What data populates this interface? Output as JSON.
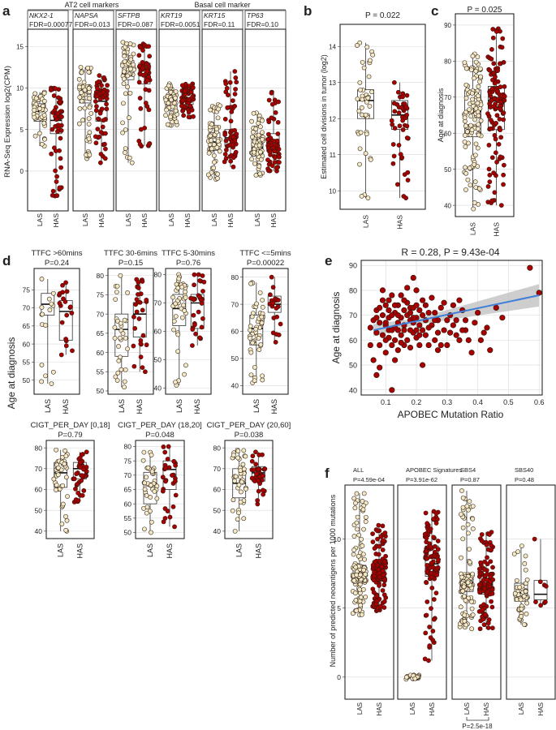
{
  "figure": {
    "colors": {
      "las": "#f3e9c6",
      "has": "#a80000",
      "point_edge": "#2b1a10",
      "box": "#333333",
      "grid": "#d9d9d9",
      "fit_line": "#3f7fd9",
      "ci": "#bdbdbd"
    },
    "panel_labels": {
      "a": "a",
      "b": "b",
      "c": "c",
      "d": "d",
      "e": "e",
      "f": "f"
    }
  },
  "chart_data": [
    {
      "id": "a",
      "type": "box-strip",
      "group_labels": [
        "AT2 cell markers",
        "Basal cell marker"
      ],
      "ylabel": "RNA-Seq Expression log2(CPM)",
      "ylim": [
        -4.5,
        16
      ],
      "yticks": [
        0,
        5,
        10,
        15
      ],
      "xcats": [
        "LAS",
        "HAS"
      ],
      "facets": [
        {
          "gene": "NKX2-1",
          "stat": "FDR=0.00077",
          "las": {
            "q": [
              3,
              6.0,
              7.2,
              8.1,
              9.5
            ],
            "n": 50
          },
          "has": {
            "q": [
              -3,
              4.5,
              6.1,
              7.1,
              10.0
            ],
            "n": 55
          }
        },
        {
          "gene": "NAPSA",
          "stat": "FDR=0.013",
          "las": {
            "q": [
              1.5,
              8.2,
              9.3,
              10.3,
              12.5
            ],
            "n": 60
          },
          "has": {
            "q": [
              1,
              6.0,
              8.4,
              9.8,
              11.5
            ],
            "n": 60
          }
        },
        {
          "gene": "SFTPB",
          "stat": "FDR=0.087",
          "las": {
            "q": [
              1,
              11.0,
              12.2,
              13.3,
              15.5
            ],
            "n": 60
          },
          "has": {
            "q": [
              3,
              10.5,
              11.7,
              13.0,
              15.3
            ],
            "n": 60
          }
        },
        {
          "gene": "KRT19",
          "stat": "FDR=0.0051",
          "las": {
            "q": [
              5.5,
              7.3,
              8.2,
              9.0,
              10.5
            ],
            "n": 60
          },
          "has": {
            "q": [
              6.5,
              8.0,
              8.8,
              9.6,
              10.5
            ],
            "n": 60
          }
        },
        {
          "gene": "KRT15",
          "stat": "FDR=0.11",
          "las": {
            "q": [
              -1,
              2.5,
              3.5,
              4.6,
              8.0
            ],
            "n": 60
          },
          "has": {
            "q": [
              0.5,
              3.0,
              4.0,
              5.0,
              12.0
            ],
            "n": 60
          }
        },
        {
          "gene": "TP63",
          "stat": "FDR=0.10",
          "las": {
            "q": [
              -0.5,
              1.8,
              2.8,
              3.8,
              7.0
            ],
            "n": 60
          },
          "has": {
            "q": [
              0,
              2.2,
              3.2,
              4.5,
              9.5
            ],
            "n": 60
          }
        }
      ]
    },
    {
      "id": "b",
      "type": "box-strip",
      "title": "P = 0.022",
      "ylabel": "Estimated cell divisions in tumor (log2)",
      "ylim": [
        9.6,
        14.5
      ],
      "yticks": [
        10,
        11,
        12,
        13,
        14
      ],
      "xcats": [
        "LAS",
        "HAS"
      ],
      "las": {
        "q": [
          9.8,
          12.0,
          12.5,
          12.8,
          14.1
        ],
        "n": 45
      },
      "has": {
        "q": [
          9.8,
          11.7,
          12.1,
          12.5,
          13.0
        ],
        "n": 48
      }
    },
    {
      "id": "c",
      "type": "box-strip",
      "title": "P = 0.025",
      "ylabel": "Age at diagnosis",
      "ylim": [
        38,
        92
      ],
      "yticks": [
        40,
        50,
        60,
        70,
        80,
        90
      ],
      "xcats": [
        "LAS",
        "HAS"
      ],
      "las": {
        "q": [
          39,
          59,
          66,
          72,
          82
        ],
        "n": 120
      },
      "has": {
        "q": [
          40,
          61,
          69,
          73,
          89
        ],
        "n": 120
      }
    },
    {
      "id": "d",
      "type": "box-strip",
      "ylabel": "Age at diagnosis",
      "xcats": [
        "LAS",
        "HAS"
      ],
      "facets": [
        {
          "title": "TTFC >60mins",
          "stat": "P=0.24",
          "ylim": [
            47,
            80
          ],
          "yticks": [
            50,
            55,
            60,
            65,
            70,
            75
          ],
          "las": {
            "q": [
              49,
              68,
              71,
              74,
              78
            ],
            "n": 16
          },
          "has": {
            "q": [
              57,
              61,
              69,
              72,
              77
            ],
            "n": 20
          }
        },
        {
          "title": "TTFC 30-6mins",
          "stat": "P=0.15",
          "ylim": [
            50,
            81
          ],
          "yticks": [
            50,
            55,
            60,
            65,
            70,
            75,
            80
          ],
          "las": {
            "q": [
              51,
              59,
              66,
              70,
              80
            ],
            "n": 30
          },
          "has": {
            "q": [
              55,
              64,
              70,
              73,
              79
            ],
            "n": 30
          }
        },
        {
          "title": "TTFC 5-30mins",
          "stat": "P=0.76",
          "ylim": [
            39,
            81
          ],
          "yticks": [
            40,
            50,
            60,
            70,
            80
          ],
          "las": {
            "q": [
              41,
              62,
              68,
              73,
              80
            ],
            "n": 40
          },
          "has": {
            "q": [
              55,
              61,
              70,
              73,
              80
            ],
            "n": 30
          }
        },
        {
          "title": "TTFC <=5mins",
          "stat": "P=0.00022",
          "ylim": [
            38,
            82
          ],
          "yticks": [
            40,
            50,
            60,
            70,
            80
          ],
          "las": {
            "q": [
              41,
              55,
              61,
              66,
              78
            ],
            "n": 50
          },
          "has": {
            "q": [
              56,
              67,
              70,
              73,
              80
            ],
            "n": 20
          }
        },
        {
          "title": "CIGT_PER_DAY [0,18]",
          "stat": "P=0.79",
          "ylim": [
            38,
            82
          ],
          "yticks": [
            40,
            50,
            60,
            70,
            80
          ],
          "las": {
            "q": [
              40,
              61,
              68,
              73,
              79
            ],
            "n": 40
          },
          "has": {
            "q": [
              54,
              65,
              70,
              73,
              78
            ],
            "n": 40
          }
        },
        {
          "title": "CIGT_PER_DAY (18,20]",
          "stat": "P=0.048",
          "ylim": [
            49,
            81
          ],
          "yticks": [
            50,
            55,
            60,
            65,
            70,
            75,
            80
          ],
          "las": {
            "q": [
              50,
              60,
              67,
              71,
              78
            ],
            "n": 40
          },
          "has": {
            "q": [
              52,
              65,
              72,
              75,
              80
            ],
            "n": 30
          }
        },
        {
          "title": "CIGT_PER_DAY (20,60]",
          "stat": "P=0.038",
          "ylim": [
            38,
            82
          ],
          "yticks": [
            40,
            50,
            60,
            70,
            80
          ],
          "las": {
            "q": [
              40,
              56,
              63,
              70,
              79
            ],
            "n": 45
          },
          "has": {
            "q": [
              53,
              64,
              68,
              71,
              78
            ],
            "n": 35
          }
        }
      ]
    },
    {
      "id": "e",
      "type": "scatter",
      "title": "R = 0.28, P = 9.43e-04",
      "xlabel": "APOBEC Mutation Ratio",
      "ylabel": "Age at diagnosis",
      "xlim": [
        0.02,
        0.61
      ],
      "ylim": [
        38,
        92
      ],
      "xticks": [
        0.1,
        0.2,
        0.3,
        0.4,
        0.5,
        0.6
      ],
      "yticks": [
        40,
        50,
        60,
        70,
        80,
        90
      ],
      "fit": {
        "x": [
          0.06,
          0.6
        ],
        "y": [
          64,
          78
        ]
      },
      "points": [
        [
          0.57,
          89
        ],
        [
          0.6,
          79
        ],
        [
          0.43,
          65
        ],
        [
          0.41,
          60
        ],
        [
          0.44,
          56
        ],
        [
          0.33,
          62
        ],
        [
          0.31,
          70
        ],
        [
          0.36,
          68
        ],
        [
          0.29,
          75
        ],
        [
          0.27,
          63
        ],
        [
          0.3,
          68
        ],
        [
          0.26,
          71
        ],
        [
          0.23,
          62
        ],
        [
          0.21,
          58
        ],
        [
          0.19,
          85
        ],
        [
          0.06,
          52
        ],
        [
          0.07,
          46
        ],
        [
          0.12,
          40
        ],
        [
          0.08,
          49
        ],
        [
          0.1,
          55
        ],
        [
          0.13,
          52
        ],
        [
          0.15,
          78
        ],
        [
          0.18,
          73
        ],
        [
          0.22,
          76
        ],
        [
          0.24,
          58
        ],
        [
          0.35,
          72
        ],
        [
          0.38,
          55
        ],
        [
          0.16,
          66
        ],
        [
          0.2,
          69
        ],
        [
          0.25,
          66
        ],
        [
          0.28,
          73
        ],
        [
          0.32,
          74
        ],
        [
          0.34,
          60
        ],
        [
          0.17,
          60
        ],
        [
          0.11,
          61
        ],
        [
          0.14,
          64
        ],
        [
          0.09,
          70
        ],
        [
          0.1,
          74
        ],
        [
          0.12,
          78
        ],
        [
          0.2,
          80
        ],
        [
          0.22,
          50
        ],
        [
          0.28,
          58
        ],
        [
          0.4,
          71
        ],
        [
          0.39,
          67
        ],
        [
          0.46,
          73
        ],
        [
          0.05,
          58
        ],
        [
          0.07,
          63
        ],
        [
          0.08,
          67
        ],
        [
          0.11,
          69
        ],
        [
          0.13,
          71
        ],
        [
          0.14,
          67
        ],
        [
          0.16,
          72
        ],
        [
          0.17,
          75
        ],
        [
          0.18,
          68
        ],
        [
          0.19,
          63
        ],
        [
          0.21,
          72
        ],
        [
          0.23,
          68
        ],
        [
          0.24,
          71
        ],
        [
          0.26,
          60
        ],
        [
          0.27,
          68
        ],
        [
          0.29,
          64
        ],
        [
          0.3,
          58
        ],
        [
          0.31,
          63
        ],
        [
          0.33,
          68
        ],
        [
          0.34,
          76
        ],
        [
          0.36,
          64
        ],
        [
          0.37,
          60
        ],
        [
          0.09,
          62
        ],
        [
          0.1,
          66
        ],
        [
          0.11,
          64
        ],
        [
          0.12,
          70
        ],
        [
          0.13,
          60
        ],
        [
          0.14,
          74
        ],
        [
          0.15,
          62
        ],
        [
          0.16,
          58
        ],
        [
          0.17,
          70
        ],
        [
          0.18,
          64
        ],
        [
          0.19,
          73
        ],
        [
          0.2,
          64
        ],
        [
          0.21,
          66
        ],
        [
          0.22,
          70
        ],
        [
          0.23,
          74
        ],
        [
          0.25,
          77
        ],
        [
          0.26,
          68
        ],
        [
          0.06,
          68
        ],
        [
          0.07,
          72
        ],
        [
          0.08,
          58
        ],
        [
          0.09,
          76
        ],
        [
          0.1,
          60
        ],
        [
          0.11,
          76
        ],
        [
          0.12,
          58
        ],
        [
          0.13,
          65
        ],
        [
          0.14,
          56
        ],
        [
          0.15,
          69
        ],
        [
          0.16,
          64
        ],
        [
          0.17,
          81
        ],
        [
          0.18,
          57
        ],
        [
          0.19,
          67
        ],
        [
          0.2,
          61
        ],
        [
          0.22,
          64
        ],
        [
          0.24,
          65
        ],
        [
          0.27,
          56
        ],
        [
          0.09,
          80
        ],
        [
          0.1,
          67
        ],
        [
          0.12,
          64
        ],
        [
          0.13,
          74
        ],
        [
          0.15,
          59
        ],
        [
          0.16,
          76
        ],
        [
          0.18,
          71
        ],
        [
          0.2,
          74
        ],
        [
          0.05,
          65
        ],
        [
          0.07,
          69
        ],
        [
          0.08,
          73
        ],
        [
          0.11,
          72
        ],
        [
          0.14,
          70
        ],
        [
          0.19,
          69
        ],
        [
          0.21,
          62
        ],
        [
          0.32,
          66
        ],
        [
          0.35,
          64
        ],
        [
          0.42,
          63
        ],
        [
          0.48,
          69
        ]
      ]
    },
    {
      "id": "f",
      "type": "box-strip",
      "ylabel": "Number of predicted neoantigens per 1000 mutations",
      "ylim": [
        -0.6,
        14.5
      ],
      "yticks": [
        0,
        5,
        10
      ],
      "xcats": [
        "LAS",
        "HAS"
      ],
      "bracket": "P=2.5e-18",
      "facets": [
        {
          "title": "ALL",
          "stat": "P=4.59e-04",
          "las": {
            "q": [
              4.5,
              6.9,
              7.4,
              8.1,
              13.3
            ],
            "n": 130
          },
          "has": {
            "q": [
              4.8,
              7.0,
              7.6,
              8.4,
              11.0
            ],
            "n": 130
          }
        },
        {
          "title": "APOBEC Signatures",
          "stat": "P=3.91e-62",
          "las": {
            "q": [
              -0.15,
              -0.05,
              0,
              0.05,
              0.15
            ],
            "n": 30
          },
          "has": {
            "q": [
              1.2,
              7.3,
              8.2,
              9.5,
              12.0
            ],
            "n": 110
          }
        },
        {
          "title": "SBS4",
          "stat": "P=0.87",
          "las": {
            "q": [
              3.5,
              6.2,
              6.8,
              7.5,
              13.5
            ],
            "n": 120
          },
          "has": {
            "q": [
              3.5,
              6.0,
              6.7,
              7.5,
              10.5
            ],
            "n": 120
          }
        },
        {
          "title": "SBS40",
          "stat": "P=0.48",
          "las": {
            "q": [
              3.8,
              5.5,
              6.1,
              6.8,
              9.5
            ],
            "n": 50
          },
          "has": {
            "q": [
              5.2,
              5.6,
              6.0,
              7.0,
              10.0
            ],
            "n": 8
          }
        }
      ]
    }
  ]
}
